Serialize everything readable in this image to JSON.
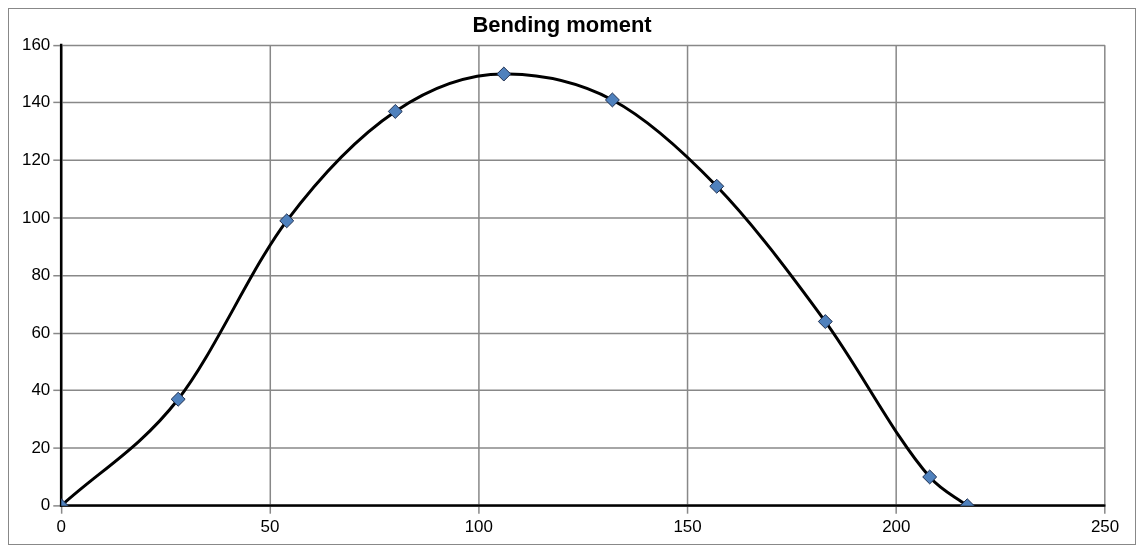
{
  "chart_data": {
    "type": "line",
    "title": "Bending moment",
    "x": [
      0,
      28,
      54,
      80,
      106,
      132,
      157,
      183,
      208,
      217
    ],
    "series": [
      {
        "color": "#4f81bd",
        "values": [
          0,
          37,
          99,
          137,
          150,
          141,
          111,
          64,
          10,
          0
        ]
      }
    ],
    "xlim": [
      0,
      250
    ],
    "xticks": [
      0,
      50,
      100,
      150,
      200,
      250
    ],
    "ylim": [
      0,
      160
    ],
    "yticks": [
      0,
      20,
      40,
      60,
      80,
      100,
      120,
      140,
      160
    ],
    "grid": true,
    "legend": false,
    "marker": "diamond",
    "line_style": "solid"
  }
}
